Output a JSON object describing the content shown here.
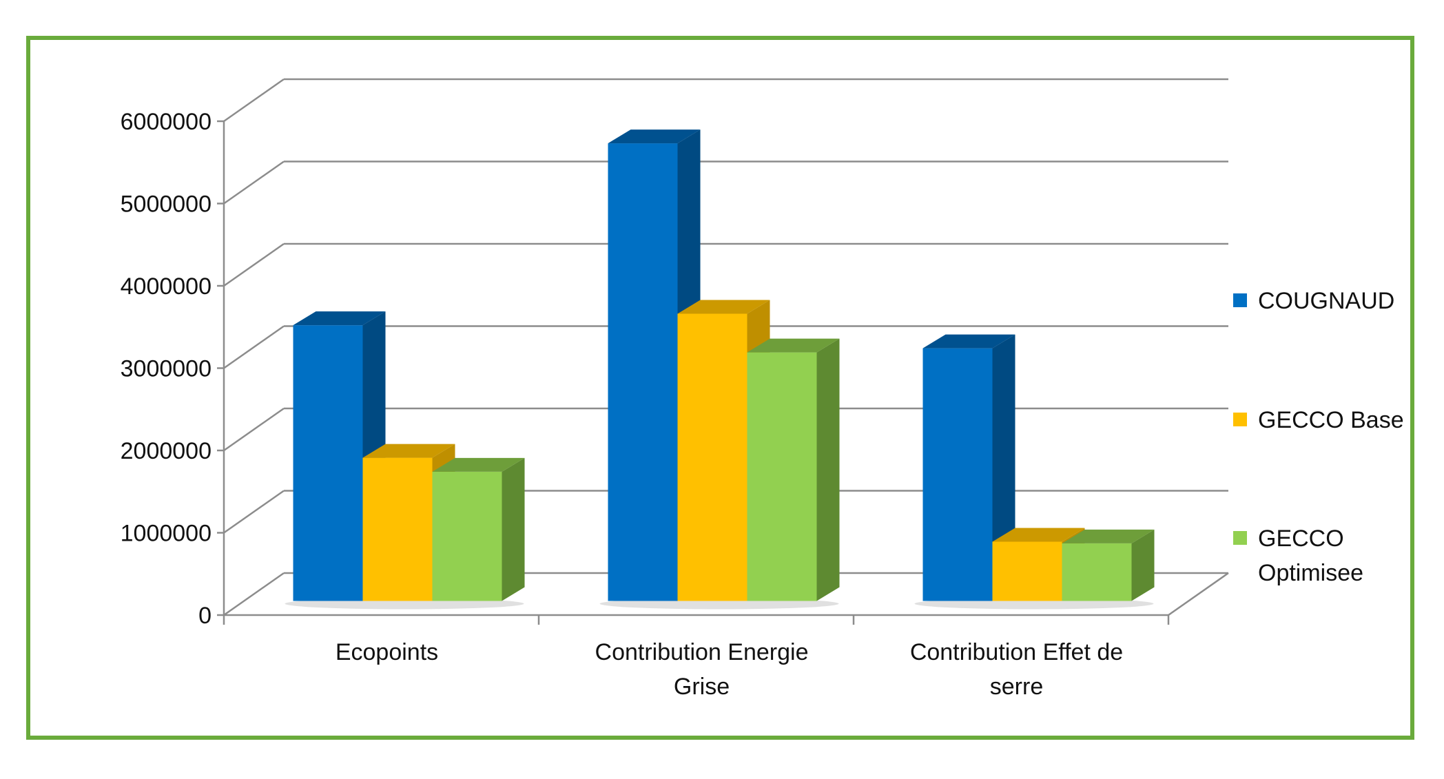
{
  "chart_data": {
    "type": "bar",
    "style": "3d-clustered-column",
    "categories": [
      "Ecopoints",
      "Contribution Energie Grise",
      "Contribution Effet de serre"
    ],
    "category_lines": [
      [
        "Ecopoints"
      ],
      [
        "Contribution Energie",
        "Grise"
      ],
      [
        "Contribution Effet de",
        "serre"
      ]
    ],
    "series": [
      {
        "name": "COUGNAUD",
        "values": [
          3350000,
          5560000,
          3070000
        ],
        "color": "#0070c4",
        "side_color": "#004a82",
        "top_color": "#00518f"
      },
      {
        "name": "GECCO Base",
        "values": [
          1740000,
          3490000,
          720000
        ],
        "color": "#ffc000",
        "side_color": "#bf8f00",
        "top_color": "#cc9900"
      },
      {
        "name": "GECCO Optimisee",
        "legend_lines": [
          "GECCO",
          "Optimisee"
        ],
        "values": [
          1570000,
          3020000,
          700000
        ],
        "color": "#92d050",
        "side_color": "#5e8a31",
        "top_color": "#6e9e3a"
      }
    ],
    "yticks": [
      "0",
      "1000000",
      "2000000",
      "3000000",
      "4000000",
      "5000000",
      "6000000"
    ],
    "ylim": [
      0,
      6000000
    ],
    "grid": true,
    "legend_position": "right",
    "frame_color": "#6aab3c"
  }
}
